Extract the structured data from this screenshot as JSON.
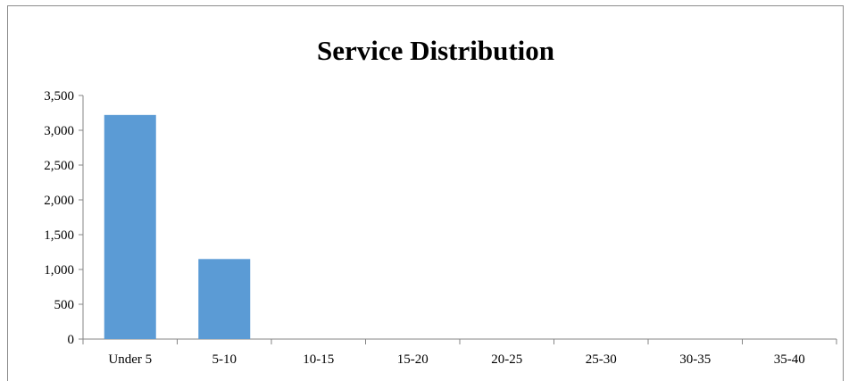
{
  "chart_data": {
    "type": "bar",
    "title": "Service Distribution",
    "xlabel": "",
    "ylabel": "",
    "categories": [
      "Under 5",
      "5-10",
      "10-15",
      "15-20",
      "20-25",
      "25-30",
      "30-35",
      "35-40"
    ],
    "values": [
      3220,
      1150,
      0,
      0,
      0,
      0,
      0,
      0
    ],
    "y_ticks": [
      "0",
      "500",
      "1,000",
      "1,500",
      "2,000",
      "2,500",
      "3,000",
      "3,500"
    ],
    "ylim": [
      0,
      3500
    ],
    "grid": false,
    "legend": "none",
    "bar_color": "#5b9bd5",
    "axis_color": "#868686"
  }
}
